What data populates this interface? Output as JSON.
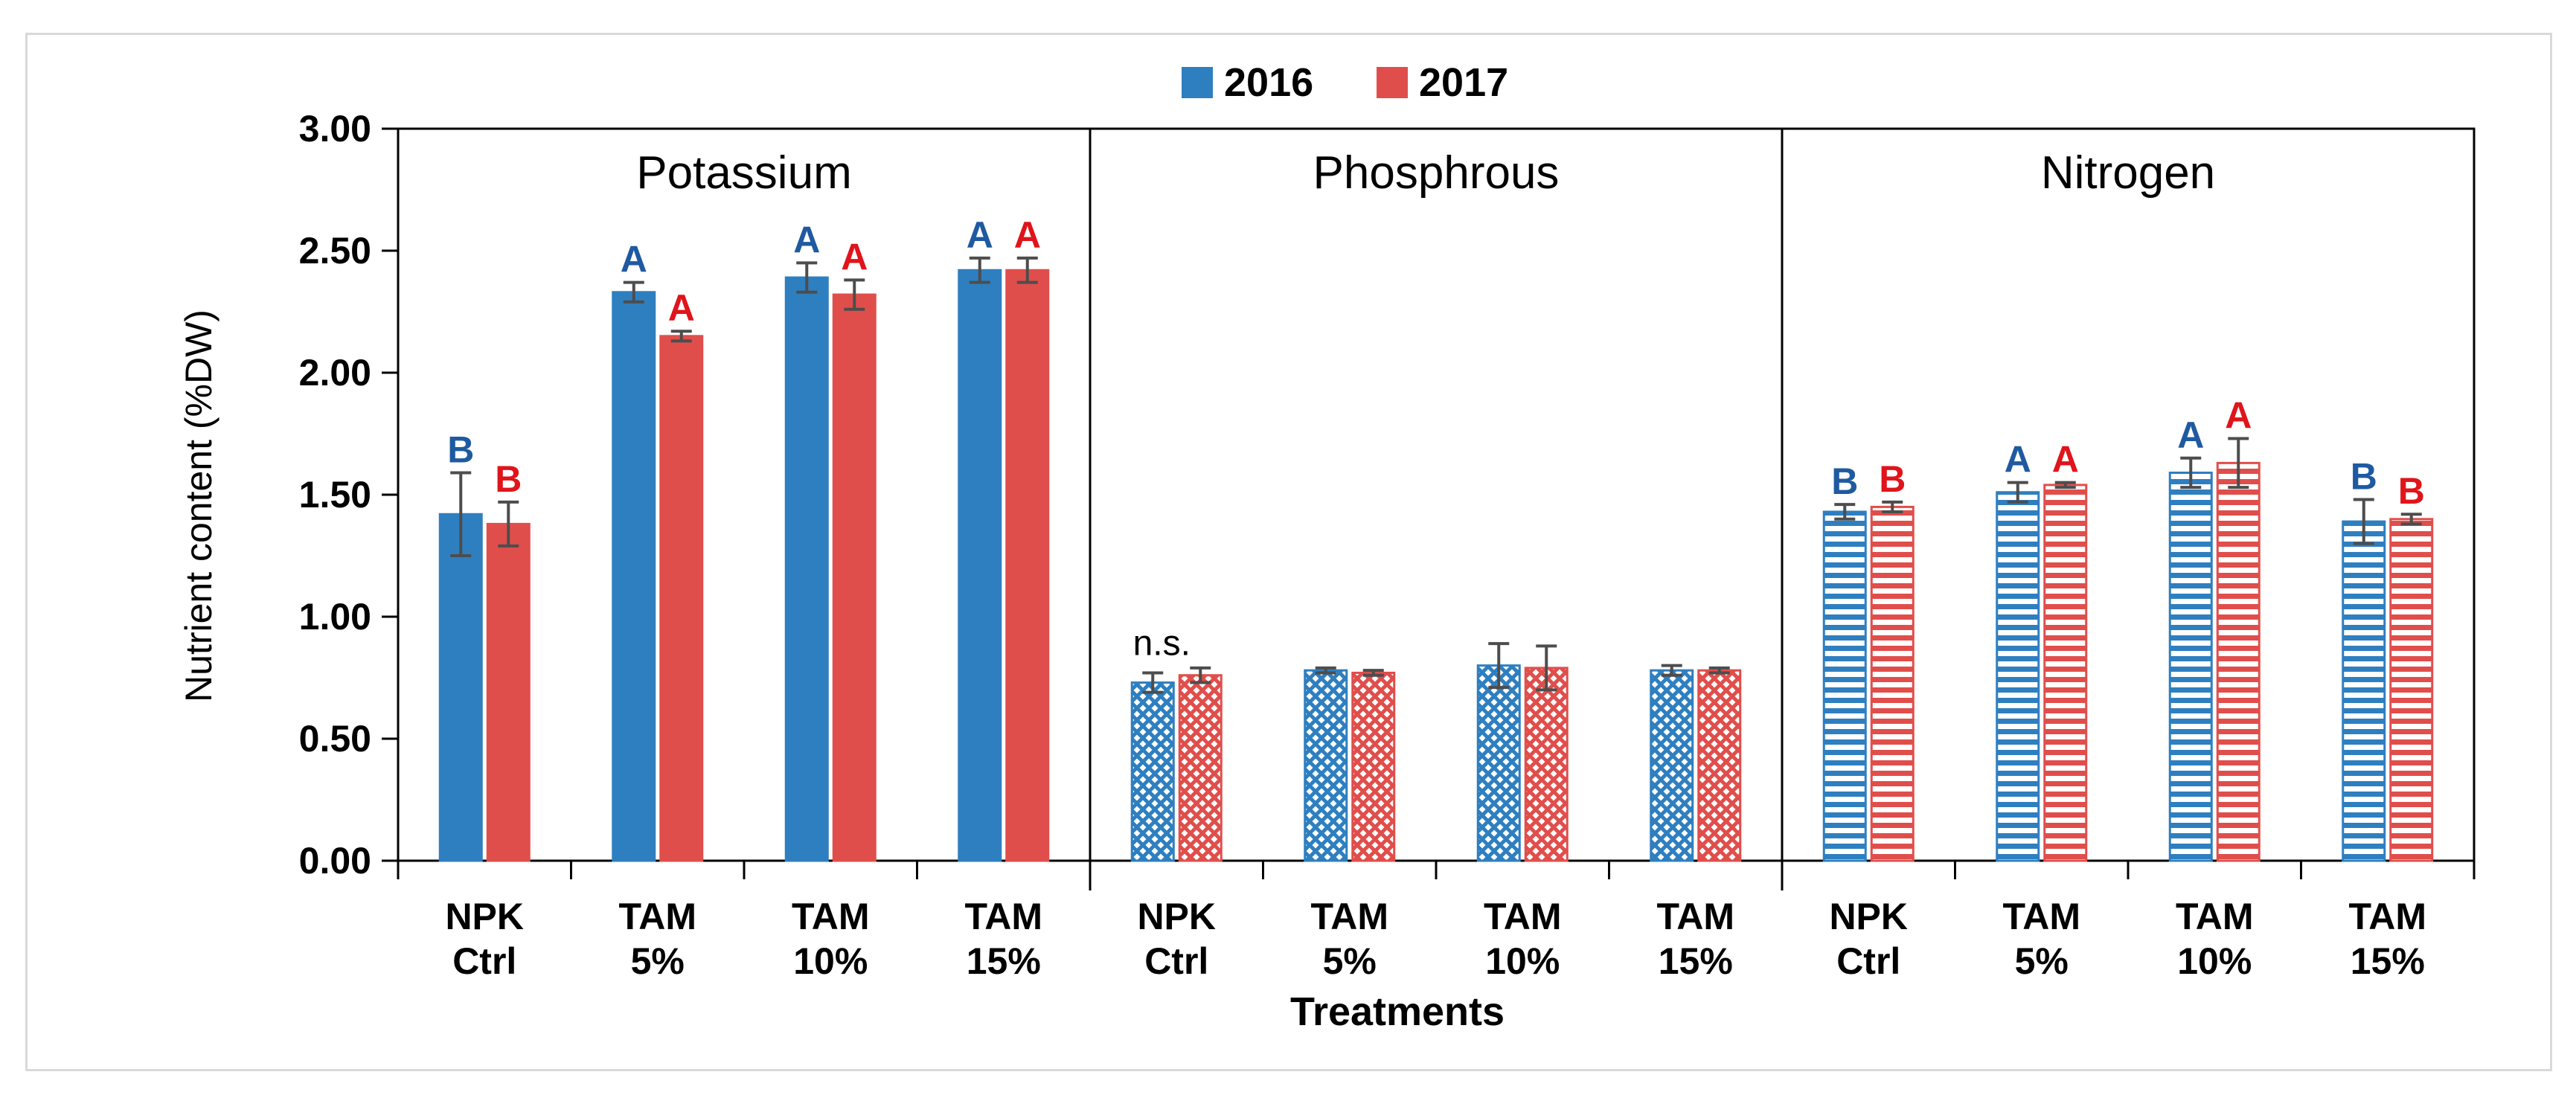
{
  "chart_data": {
    "type": "bar",
    "title": "",
    "xlabel": "Treatments",
    "ylabel": "Nutrient content (%DW)",
    "ylim": [
      0,
      3
    ],
    "yticks": [
      "0.00",
      "0.50",
      "1.00",
      "1.50",
      "2.00",
      "2.50",
      "3.00"
    ],
    "legend": {
      "position": "top-center",
      "entries": [
        "2016",
        "2017"
      ]
    },
    "colors": {
      "2016": "#2e7fc0",
      "2017": "#e04e4b"
    },
    "panels": [
      {
        "name": "Potassium",
        "pattern": "solid",
        "categories": [
          [
            "NPK",
            "Ctrl"
          ],
          [
            "TAM",
            "5%"
          ],
          [
            "TAM",
            "10%"
          ],
          [
            "TAM",
            "15%"
          ]
        ],
        "series": [
          {
            "name": "2016",
            "values": [
              1.42,
              2.33,
              2.39,
              2.42
            ],
            "errors": [
              0.17,
              0.04,
              0.06,
              0.05
            ],
            "letters": [
              "B",
              "A",
              "A",
              "A"
            ]
          },
          {
            "name": "2017",
            "values": [
              1.38,
              2.15,
              2.32,
              2.42
            ],
            "errors": [
              0.09,
              0.02,
              0.06,
              0.05
            ],
            "letters": [
              "B",
              "A",
              "A",
              "A"
            ]
          }
        ]
      },
      {
        "name": "Phosphrous",
        "pattern": "cross",
        "note": "n.s.",
        "categories": [
          [
            "NPK",
            "Ctrl"
          ],
          [
            "TAM",
            "5%"
          ],
          [
            "TAM",
            "10%"
          ],
          [
            "TAM",
            "15%"
          ]
        ],
        "series": [
          {
            "name": "2016",
            "values": [
              0.73,
              0.78,
              0.8,
              0.78
            ],
            "errors": [
              0.04,
              0.01,
              0.09,
              0.02
            ],
            "letters": [
              "",
              "",
              "",
              ""
            ]
          },
          {
            "name": "2017",
            "values": [
              0.76,
              0.77,
              0.79,
              0.78
            ],
            "errors": [
              0.03,
              0.01,
              0.09,
              0.01
            ],
            "letters": [
              "",
              "",
              "",
              ""
            ]
          }
        ]
      },
      {
        "name": "Nitrogen",
        "pattern": "stripes",
        "categories": [
          [
            "NPK",
            "Ctrl"
          ],
          [
            "TAM",
            "5%"
          ],
          [
            "TAM",
            "10%"
          ],
          [
            "TAM",
            "15%"
          ]
        ],
        "series": [
          {
            "name": "2016",
            "values": [
              1.43,
              1.51,
              1.59,
              1.39
            ],
            "errors": [
              0.03,
              0.04,
              0.06,
              0.09
            ],
            "letters": [
              "B",
              "A",
              "A",
              "B"
            ]
          },
          {
            "name": "2017",
            "values": [
              1.45,
              1.54,
              1.63,
              1.4
            ],
            "errors": [
              0.02,
              0.01,
              0.1,
              0.02
            ],
            "letters": [
              "B",
              "A",
              "A",
              "B"
            ]
          }
        ]
      }
    ]
  }
}
